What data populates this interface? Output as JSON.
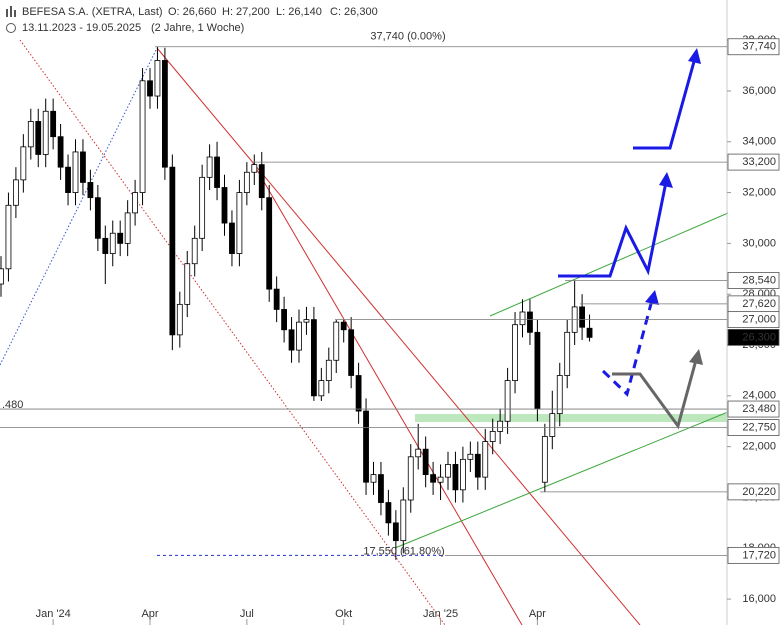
{
  "chart_data": {
    "type": "candlestick",
    "title": "BEFESA S.A. (XETRA, Last)",
    "ohlc_text": [
      "O: 26,660",
      "H: 27,200",
      "L: 26,140",
      "C: 26,300"
    ],
    "subtitle": "13.11.2023 - 19.05.2025",
    "period": "(2 Jahre, 1 Woche)",
    "categories": [
      null,
      null,
      null,
      null,
      null,
      null,
      null,
      "Jan '24",
      null,
      null,
      null,
      null,
      null,
      null,
      null,
      null,
      null,
      null,
      null,
      null,
      "Apr",
      null,
      null,
      null,
      null,
      null,
      null,
      null,
      null,
      null,
      null,
      null,
      null,
      "Jul",
      null,
      null,
      null,
      null,
      null,
      null,
      null,
      null,
      null,
      null,
      null,
      null,
      "Okt",
      null,
      null,
      null,
      null,
      null,
      null,
      null,
      null,
      null,
      null,
      null,
      null,
      "Jan '25",
      null,
      null,
      null,
      null,
      null,
      null,
      null,
      null,
      null,
      null,
      null,
      null,
      "Apr",
      null,
      null,
      null,
      null,
      null,
      null,
      null
    ],
    "open": [
      28.4,
      29.0,
      31.5,
      32.5,
      33.8,
      34.8,
      33.5,
      35.2,
      34.2,
      33.0,
      32.0,
      33.6,
      32.4,
      31.8,
      30.2,
      29.6,
      30.4,
      30.0,
      31.2,
      32.0,
      36.4,
      35.8,
      37.2,
      33.0,
      26.4,
      27.6,
      29.2,
      30.2,
      32.6,
      33.4,
      32.2,
      30.8,
      29.6,
      32.0,
      32.8,
      33.1,
      31.8,
      28.2,
      27.4,
      26.6,
      25.8,
      26.9,
      27.0,
      24.0,
      24.6,
      25.4,
      26.9,
      26.6,
      24.8,
      23.4,
      20.6,
      20.9,
      19.8,
      19.0,
      18.3,
      19.9,
      21.6,
      21.9,
      20.9,
      20.6,
      20.8,
      21.3,
      20.3,
      21.5,
      21.7,
      20.8,
      22.2,
      22.6,
      23.0,
      24.6,
      26.8,
      27.3,
      26.5,
      20.6,
      22.4,
      23.3,
      24.8,
      26.5,
      27.5,
      26.66
    ],
    "high": [
      29.5,
      32.0,
      33.0,
      34.3,
      35.3,
      35.3,
      35.7,
      35.7,
      34.7,
      33.5,
      34.1,
      34.1,
      32.9,
      32.3,
      30.7,
      30.9,
      30.9,
      31.7,
      32.5,
      36.9,
      36.9,
      37.74,
      37.7,
      33.5,
      28.1,
      29.7,
      30.7,
      33.1,
      33.9,
      34.0,
      32.7,
      31.3,
      32.5,
      33.2,
      33.5,
      33.6,
      32.3,
      28.7,
      27.9,
      27.1,
      27.4,
      27.5,
      27.5,
      25.1,
      25.9,
      27.0,
      27.0,
      27.1,
      25.3,
      23.9,
      21.4,
      21.4,
      20.3,
      19.5,
      20.4,
      22.1,
      22.9,
      22.4,
      21.4,
      21.3,
      21.8,
      21.8,
      22.0,
      22.2,
      22.2,
      22.7,
      23.1,
      23.5,
      25.1,
      27.3,
      27.8,
      27.8,
      27.0,
      22.9,
      24.2,
      25.3,
      27.0,
      28.54,
      28.0,
      27.2
    ],
    "low": [
      27.9,
      28.5,
      31.0,
      32.0,
      33.3,
      33.0,
      33.0,
      33.7,
      32.5,
      31.5,
      31.5,
      31.9,
      31.3,
      29.7,
      28.4,
      29.1,
      29.5,
      29.5,
      30.7,
      31.5,
      35.3,
      35.3,
      32.5,
      25.8,
      25.9,
      27.1,
      28.7,
      29.7,
      32.1,
      31.7,
      30.3,
      29.1,
      29.1,
      31.5,
      32.3,
      31.3,
      27.7,
      26.9,
      26.1,
      25.3,
      25.3,
      26.4,
      23.8,
      23.8,
      24.1,
      24.9,
      26.1,
      24.3,
      22.9,
      20.1,
      20.1,
      19.3,
      18.5,
      17.55,
      17.8,
      19.4,
      21.1,
      20.4,
      20.1,
      19.9,
      20.3,
      19.8,
      19.8,
      21.0,
      20.3,
      20.3,
      21.7,
      22.1,
      22.5,
      24.1,
      26.3,
      26.0,
      23.0,
      20.22,
      21.9,
      22.8,
      24.3,
      26.0,
      26.2,
      26.14
    ],
    "close": [
      29.0,
      31.5,
      32.5,
      33.8,
      34.8,
      33.5,
      35.2,
      34.2,
      33.0,
      32.0,
      33.6,
      32.4,
      31.8,
      30.2,
      29.6,
      30.4,
      30.0,
      31.2,
      32.0,
      36.4,
      35.8,
      37.2,
      33.0,
      26.4,
      27.6,
      29.2,
      30.2,
      32.6,
      33.4,
      32.2,
      30.8,
      29.6,
      32.0,
      32.8,
      33.1,
      31.8,
      28.2,
      27.4,
      26.6,
      25.8,
      26.9,
      27.0,
      24.0,
      24.6,
      25.4,
      26.9,
      26.6,
      24.8,
      23.4,
      20.6,
      20.9,
      19.8,
      19.0,
      18.3,
      19.9,
      21.6,
      21.9,
      20.9,
      20.6,
      20.8,
      21.3,
      20.3,
      21.5,
      21.7,
      20.8,
      22.2,
      22.6,
      23.0,
      24.6,
      26.8,
      27.3,
      26.5,
      23.5,
      22.4,
      23.3,
      24.8,
      26.5,
      27.5,
      26.7,
      26.3
    ],
    "up_color": "#ffffff",
    "down_color": "#000000",
    "ylim": [
      14.98,
      39.58
    ],
    "yticks": [
      {
        "value": 16,
        "label": "16,000"
      },
      {
        "value": 18,
        "label": "18,000"
      },
      {
        "value": 20,
        "label": "20,000"
      },
      {
        "value": 22,
        "label": "22,000"
      },
      {
        "value": 24,
        "label": "24,000"
      },
      {
        "value": 26,
        "label": "26,000"
      },
      {
        "value": 28,
        "label": "28,000"
      },
      {
        "value": 30,
        "label": "30,000"
      },
      {
        "value": 32,
        "label": "32,000"
      },
      {
        "value": 34,
        "label": "34,000"
      },
      {
        "value": 36,
        "label": "36,000"
      },
      {
        "value": 38,
        "label": "38,000"
      }
    ],
    "levels": [
      {
        "value": 37.74,
        "label": "37,740"
      },
      {
        "value": 33.2,
        "label": "33,200"
      },
      {
        "value": 28.54,
        "label": "28,540"
      },
      {
        "value": 27.62,
        "label": "27,620"
      },
      {
        "value": 27.0,
        "label": "27,000"
      },
      {
        "value": 26.3,
        "label": "26,300"
      },
      {
        "value": 23.48,
        "label": "23,480"
      },
      {
        "value": 22.75,
        "label": "22,750"
      },
      {
        "value": 20.22,
        "label": "20,220"
      },
      {
        "value": 17.72,
        "label": "17,720"
      }
    ],
    "annotations": [
      {
        "value": 37.74,
        "label": "37,740 (0.00%)"
      },
      {
        "value": 17.55,
        "label": "17,550 (61.80%)"
      },
      {
        "value": 23.48,
        "label": ".480"
      }
    ]
  }
}
